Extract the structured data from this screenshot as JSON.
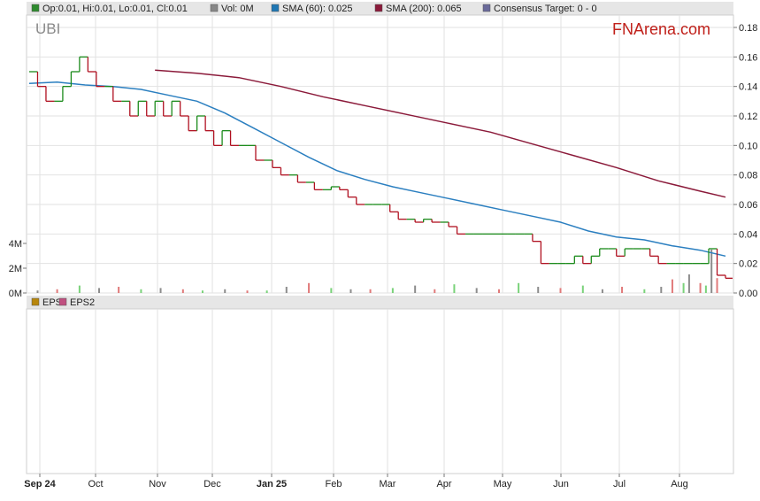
{
  "chart_data": [
    {
      "type": "line",
      "ticker": "UBI",
      "brand": "FNArena.com",
      "legend": [
        {
          "label": "Op:0.01, Hi:0.01, Lo:0.01, Cl:0.01",
          "color": "#2e8b2e"
        },
        {
          "label": "Vol: 0M",
          "color": "#888888"
        },
        {
          "label": "SMA (60): 0.025",
          "color": "#1f77b4"
        },
        {
          "label": "SMA (200): 0.065",
          "color": "#8b1a3a"
        },
        {
          "label": "Consensus Target: 0 - 0",
          "color": "#6a6a9a"
        }
      ],
      "x_labels": [
        "Sep 24",
        "Oct",
        "Nov",
        "Dec",
        "Jan 25",
        "Feb",
        "Mar",
        "Apr",
        "May",
        "Jun",
        "Jul",
        "Aug"
      ],
      "y_ticks": [
        "0.18",
        "0.16",
        "0.14",
        "0.12",
        "0.10",
        "0.08",
        "0.06",
        "0.04",
        "0.02",
        "0.00"
      ],
      "ylim": [
        0,
        0.18
      ],
      "vol_ticks": [
        "4M",
        "2M",
        "0M"
      ],
      "vol_lim": [
        0,
        4
      ],
      "colors": {
        "up": "#1a8a1a",
        "down": "#b01020",
        "sma60": "#2b7fc0",
        "sma200": "#8b1a3a",
        "volume": "#8c8c8c"
      },
      "series": [
        {
          "name": "Price",
          "x": [
            0,
            3,
            6,
            9,
            12,
            15,
            18,
            21,
            24,
            27,
            30,
            33,
            36,
            39,
            42,
            45,
            48,
            51,
            54,
            57,
            60,
            63,
            66,
            69,
            72,
            75,
            78,
            81,
            84,
            87,
            90,
            93,
            96,
            99,
            102,
            105,
            108,
            111,
            114,
            117,
            120,
            123,
            126,
            129,
            132,
            135,
            138,
            141,
            144,
            147,
            150,
            153,
            156,
            159,
            162,
            165,
            168,
            171,
            174,
            177,
            180,
            183,
            186,
            189,
            192,
            195,
            198,
            201,
            204,
            207,
            210,
            213,
            216,
            219,
            222,
            225,
            228,
            231,
            234,
            237,
            240,
            243,
            246,
            249
          ],
          "values": [
            0.15,
            0.14,
            0.13,
            0.13,
            0.14,
            0.15,
            0.16,
            0.15,
            0.14,
            0.14,
            0.13,
            0.13,
            0.12,
            0.13,
            0.12,
            0.13,
            0.12,
            0.13,
            0.12,
            0.11,
            0.12,
            0.11,
            0.1,
            0.11,
            0.1,
            0.1,
            0.1,
            0.09,
            0.09,
            0.085,
            0.08,
            0.08,
            0.075,
            0.075,
            0.07,
            0.07,
            0.072,
            0.07,
            0.065,
            0.06,
            0.06,
            0.06,
            0.06,
            0.055,
            0.05,
            0.05,
            0.048,
            0.05,
            0.048,
            0.048,
            0.045,
            0.04,
            0.04,
            0.04,
            0.04,
            0.04,
            0.04,
            0.04,
            0.04,
            0.04,
            0.035,
            0.02,
            0.02,
            0.02,
            0.02,
            0.025,
            0.02,
            0.025,
            0.03,
            0.03,
            0.025,
            0.03,
            0.03,
            0.03,
            0.025,
            0.02,
            0.02,
            0.02,
            0.02,
            0.02,
            0.02,
            0.03,
            0.012,
            0.01
          ]
        },
        {
          "name": "SMA (60)",
          "x": [
            0,
            10,
            20,
            30,
            40,
            50,
            60,
            70,
            80,
            90,
            100,
            110,
            120,
            130,
            140,
            150,
            160,
            170,
            180,
            190,
            200,
            210,
            220,
            230,
            240,
            249
          ],
          "values": [
            0.142,
            0.143,
            0.141,
            0.14,
            0.138,
            0.134,
            0.13,
            0.122,
            0.112,
            0.102,
            0.092,
            0.083,
            0.077,
            0.072,
            0.068,
            0.064,
            0.06,
            0.056,
            0.052,
            0.048,
            0.042,
            0.038,
            0.036,
            0.032,
            0.029,
            0.025
          ]
        },
        {
          "name": "SMA (200)",
          "x": [
            45,
            60,
            75,
            90,
            105,
            120,
            135,
            150,
            165,
            180,
            195,
            210,
            225,
            240,
            249
          ],
          "values": [
            0.151,
            0.149,
            0.146,
            0.14,
            0.133,
            0.127,
            0.121,
            0.115,
            0.109,
            0.101,
            0.093,
            0.085,
            0.076,
            0.069,
            0.065
          ]
        }
      ],
      "volume_x": [
        3,
        10,
        18,
        25,
        32,
        40,
        47,
        55,
        62,
        70,
        78,
        85,
        92,
        100,
        108,
        115,
        122,
        130,
        138,
        145,
        152,
        160,
        168,
        175,
        182,
        190,
        198,
        205,
        212,
        220,
        226,
        230,
        234,
        236,
        240,
        242,
        244,
        246
      ],
      "volume": [
        0.2,
        0.3,
        0.6,
        0.4,
        0.5,
        0.3,
        0.4,
        0.3,
        0.2,
        0.3,
        0.2,
        0.2,
        0.5,
        0.8,
        0.4,
        0.3,
        0.3,
        0.4,
        0.6,
        0.3,
        0.7,
        0.4,
        0.3,
        0.8,
        0.5,
        0.4,
        0.6,
        0.3,
        0.5,
        0.3,
        0.5,
        1.1,
        0.8,
        1.5,
        0.8,
        0.6,
        3.5,
        1.2
      ],
      "grid": true
    },
    {
      "type": "line",
      "legend": [
        {
          "label": "EPS",
          "color": "#b8860b"
        },
        {
          "label": "EPS2",
          "color": "#c05080"
        }
      ],
      "series": [],
      "grid": true
    }
  ]
}
